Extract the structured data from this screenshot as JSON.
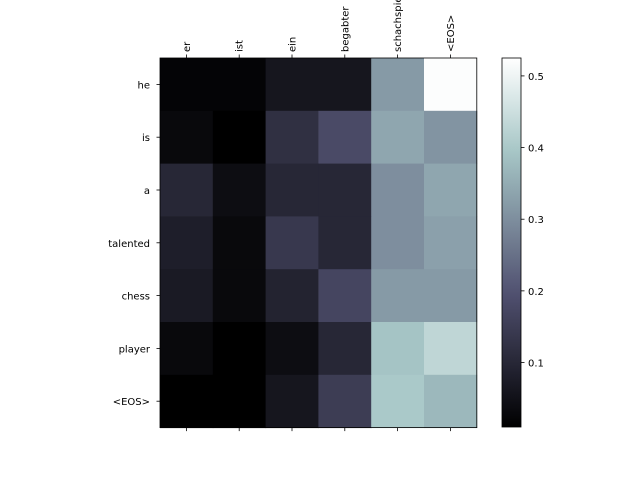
{
  "chart_data": {
    "type": "heatmap",
    "x_labels": [
      "er",
      "ist",
      "ein",
      "begabter",
      "schachspieler",
      "<EOS>"
    ],
    "y_labels": [
      "he",
      "is",
      "a",
      "talented",
      "chess",
      "player",
      "<EOS>"
    ],
    "values": [
      [
        0.02,
        0.02,
        0.06,
        0.06,
        0.32,
        0.52
      ],
      [
        0.03,
        0.01,
        0.12,
        0.18,
        0.34,
        0.31
      ],
      [
        0.1,
        0.04,
        0.1,
        0.1,
        0.3,
        0.34
      ],
      [
        0.08,
        0.03,
        0.14,
        0.1,
        0.3,
        0.33
      ],
      [
        0.07,
        0.03,
        0.09,
        0.17,
        0.32,
        0.32
      ],
      [
        0.03,
        0.01,
        0.04,
        0.1,
        0.39,
        0.43
      ],
      [
        0.01,
        0.01,
        0.06,
        0.15,
        0.4,
        0.37
      ]
    ],
    "colormap": "bone",
    "colorbar": {
      "min": 0.01,
      "max": 0.525,
      "ticks": [
        0.1,
        0.2,
        0.3,
        0.4,
        0.5
      ],
      "tick_labels": [
        "0.1",
        "0.2",
        "0.3",
        "0.4",
        "0.5"
      ]
    },
    "x_tick_label_rotation": "vertical, top"
  }
}
